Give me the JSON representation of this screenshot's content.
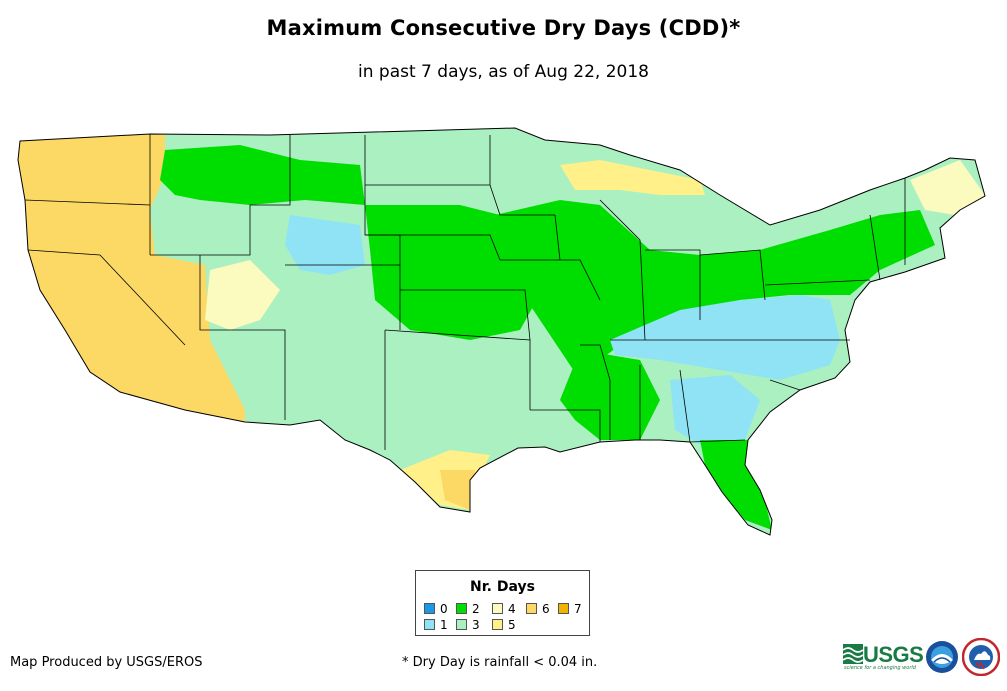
{
  "title": "Maximum Consecutive Dry Days (CDD)*",
  "subtitle": "in past 7 days, as of Aug 22, 2018",
  "legend": {
    "title": "Nr. Days",
    "items": [
      {
        "label": "0",
        "color": "#1a9ae6"
      },
      {
        "label": "1",
        "color": "#8fe3f5"
      },
      {
        "label": "2",
        "color": "#00dd00"
      },
      {
        "label": "3",
        "color": "#aaf0c0"
      },
      {
        "label": "4",
        "color": "#fbfbbf"
      },
      {
        "label": "5",
        "color": "#fff08a"
      },
      {
        "label": "6",
        "color": "#fcd865"
      },
      {
        "label": "7",
        "color": "#f0b400"
      }
    ]
  },
  "credit": "Map Produced by USGS/EROS",
  "footnote": "* Dry Day is rainfall < 0.04 in.",
  "logos": {
    "usgs": "USGS",
    "usgs_tagline": "science for a changing world",
    "noaa": "noaa-logo",
    "nws": "nws-logo"
  }
}
